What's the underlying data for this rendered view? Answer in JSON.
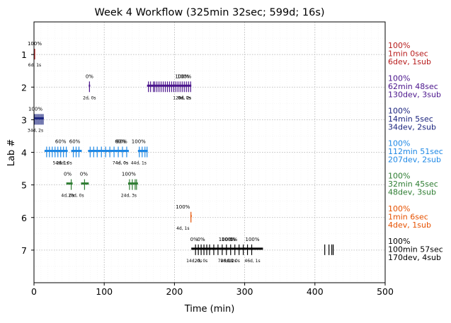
{
  "chart_data": {
    "type": "timeline",
    "title": "Week 4 Workflow (325min 32sec; 599d; 16s)",
    "xlabel": "Time (min)",
    "ylabel": "Lab #",
    "xlim": [
      0,
      500
    ],
    "ylim": [
      8,
      0
    ],
    "x_ticks": [
      "0",
      "100",
      "200",
      "300",
      "400",
      "500"
    ],
    "y_ticks": [
      "1",
      "2",
      "3",
      "4",
      "5",
      "6",
      "7"
    ],
    "grid": true,
    "labs": [
      {
        "lab": 1,
        "color": "#b71c1c",
        "summary": [
          "100%",
          "1min 0sec",
          "6dev, 1sub"
        ],
        "segments": [
          [
            0,
            1
          ]
        ],
        "spikes": [
          0.5,
          1
        ],
        "annotations": [
          {
            "x": 1,
            "pct": "100%",
            "count": "6d, 1s"
          }
        ]
      },
      {
        "lab": 2,
        "color": "#4a148c",
        "summary": [
          "100%",
          "62min 48sec",
          "130dev, 3sub"
        ],
        "segments": [
          [
            78,
            80
          ],
          [
            161,
            224
          ]
        ],
        "spikes": [
          79,
          163,
          166,
          170,
          172,
          175,
          178,
          181,
          184,
          187,
          190,
          193,
          196,
          199,
          202,
          205,
          208,
          211,
          214,
          217,
          220,
          223
        ],
        "annotations": [
          {
            "x": 79,
            "pct": "0%",
            "count": "2d, 0s"
          },
          {
            "x": 211,
            "pct": "100%",
            "count": "128d, 2s"
          },
          {
            "x": 214,
            "pct": "100%",
            "count": "0d, 0s"
          }
        ]
      },
      {
        "lab": 3,
        "color": "#1a237e",
        "summary": [
          "100%",
          "14min 5sec",
          "34dev, 2sub"
        ],
        "segments": [
          [
            0,
            14
          ]
        ],
        "spikes": [
          1,
          3,
          5,
          7,
          9,
          11,
          13
        ],
        "annotations": [
          {
            "x": 2,
            "pct": "100%",
            "count": "34d, 2s"
          }
        ]
      },
      {
        "lab": 4,
        "color": "#1e88e5",
        "summary": [
          "100%",
          "112min 51sec",
          "207dev, 2sub"
        ],
        "segments": [
          [
            15,
            48
          ],
          [
            53,
            68
          ],
          [
            77,
            135
          ],
          [
            148,
            162
          ]
        ],
        "spikes": [
          18,
          22,
          26,
          30,
          34,
          38,
          42,
          46,
          56,
          60,
          64,
          80,
          85,
          90,
          96,
          102,
          108,
          114,
          120,
          126,
          132,
          150,
          154,
          158,
          161
        ],
        "annotations": [
          {
            "x": 38,
            "pct": "60%",
            "count": "54d, 1s"
          },
          {
            "x": 43,
            "pct": "",
            "count": "28d, 0s"
          },
          {
            "x": 58,
            "pct": "60%",
            "count": ""
          },
          {
            "x": 123,
            "pct": "60%",
            "count": "74d, 0s"
          },
          {
            "x": 125,
            "pct": "60%",
            "count": "4d, 0s"
          },
          {
            "x": 149,
            "pct": "100%",
            "count": "44d, 1s"
          }
        ]
      },
      {
        "lab": 5,
        "color": "#2e7d32",
        "summary": [
          "100%",
          "32min 45sec",
          "48dev, 3sub"
        ],
        "segments": [
          [
            46,
            55
          ],
          [
            67,
            78
          ],
          [
            134,
            148
          ]
        ],
        "spikes": [
          53,
          72,
          136,
          140,
          144,
          146
        ],
        "annotations": [
          {
            "x": 48,
            "pct": "0%",
            "count": "4d, 0s"
          },
          {
            "x": 60,
            "pct": "",
            "count": "20d, 0s"
          },
          {
            "x": 71,
            "pct": "0%",
            "count": ""
          },
          {
            "x": 135,
            "pct": "100%",
            "count": "24d, 3s"
          }
        ]
      },
      {
        "lab": 6,
        "color": "#e65100",
        "summary": [
          "100%",
          "1min 6sec",
          "4dev, 1sub"
        ],
        "segments": [
          [
            223,
            224
          ]
        ],
        "spikes": [
          223.5
        ],
        "annotations": [
          {
            "x": 212,
            "pct": "100%",
            "count": "4d, 1s"
          }
        ]
      },
      {
        "lab": 7,
        "color": "#000000",
        "summary": [
          "100%",
          "100min 57sec",
          "170dev, 4sub"
        ],
        "segments": [
          [
            224,
            326
          ]
        ],
        "spikes": [
          230,
          234,
          238,
          242,
          246,
          250,
          256,
          262,
          268,
          274,
          280,
          286,
          292,
          298,
          304,
          310,
          414,
          420,
          424,
          426
        ],
        "annotations": [
          {
            "x": 228,
            "pct": "0%",
            "count": "14d, 0s"
          },
          {
            "x": 238,
            "pct": "0%",
            "count": "2d, 0s"
          },
          {
            "x": 273,
            "pct": "100%",
            "count": "78d, 1s"
          },
          {
            "x": 277,
            "pct": "100%",
            "count": "28d, 2s"
          },
          {
            "x": 284,
            "pct": "0%",
            "count": "0d, 0s"
          },
          {
            "x": 311,
            "pct": "100%",
            "count": "46d, 1s"
          }
        ]
      }
    ]
  }
}
